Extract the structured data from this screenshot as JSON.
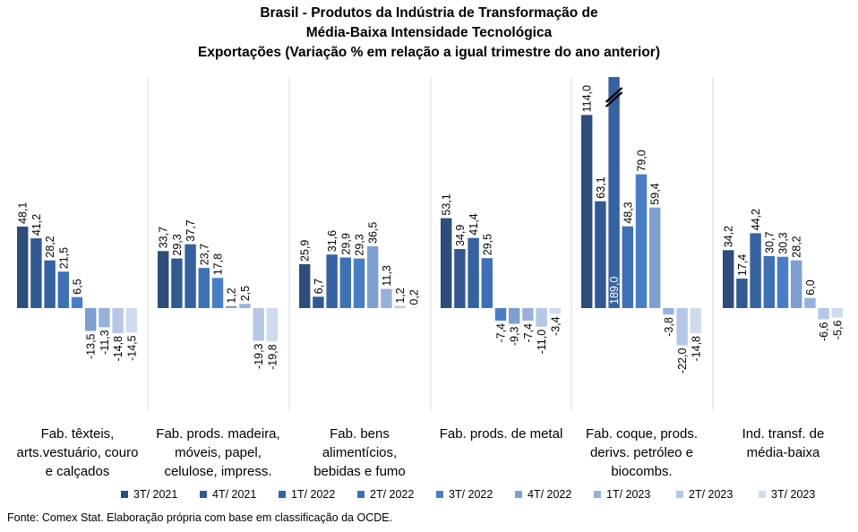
{
  "chart_data": {
    "type": "bar",
    "title": [
      "Brasil - Produtos da Indústria de Transformação de",
      "Média-Baixa Intensidade Tecnológica",
      "Exportações (Variação % em relação a igual trimestre do ano anterior)"
    ],
    "categories": [
      "Fab. têxteis, arts.vestuário, couro e calçados",
      "Fab. prods. madeira, móveis, papel, celulose, impress.",
      "Fab. bens alimentícios, bebidas e fumo",
      "Fab. prods. de metal",
      "Fab. coque, prods. derivs. petróleo e biocombs.",
      "Ind. transf. de média-baixa"
    ],
    "series": [
      {
        "name": "3T/ 2021",
        "color": "#2e4d7b",
        "values": [
          48.1,
          33.7,
          25.9,
          53.1,
          114.0,
          34.2
        ]
      },
      {
        "name": "4T/ 2021",
        "color": "#325a91",
        "values": [
          41.2,
          29.3,
          6.7,
          34.9,
          63.1,
          17.4
        ]
      },
      {
        "name": "1T/ 2022",
        "color": "#3762a0",
        "values": [
          28.2,
          37.7,
          31.6,
          41.4,
          189.0,
          44.2
        ]
      },
      {
        "name": "2T/ 2022",
        "color": "#3f70b4",
        "values": [
          21.5,
          23.7,
          29.9,
          29.5,
          48.3,
          30.7
        ]
      },
      {
        "name": "3T/ 2022",
        "color": "#4a7ec4",
        "values": [
          6.5,
          17.8,
          29.3,
          -7.4,
          79.0,
          30.3
        ]
      },
      {
        "name": "4T/ 2022",
        "color": "#7f9fd0",
        "values": [
          -13.5,
          1.2,
          36.5,
          -9.3,
          59.4,
          28.2
        ]
      },
      {
        "name": "1T/ 2023",
        "color": "#98b1da",
        "values": [
          -11.3,
          2.5,
          11.3,
          -7.4,
          -3.8,
          6.0
        ]
      },
      {
        "name": "2T/ 2023",
        "color": "#b6c7e6",
        "values": [
          -14.8,
          -19.3,
          1.2,
          -11.0,
          -22.0,
          -6.6
        ]
      },
      {
        "name": "3T/ 2023",
        "color": "#cfdbef",
        "values": [
          -14.5,
          -19.8,
          0.2,
          -3.4,
          -14.8,
          -5.6
        ]
      }
    ],
    "value_labels": [
      [
        "48,1",
        "41,2",
        "28,2",
        "21,5",
        "6,5",
        "-13,5",
        "-11,3",
        "-14,8",
        "-14,5"
      ],
      [
        "33,7",
        "29,3",
        "37,7",
        "23,7",
        "17,8",
        "1,2",
        "2,5",
        "-19,3",
        "-19,8"
      ],
      [
        "25,9",
        "6,7",
        "31,6",
        "29,9",
        "29,3",
        "36,5",
        "11,3",
        "1,2",
        "0,2"
      ],
      [
        "53,1",
        "34,9",
        "41,4",
        "29,5",
        "-7,4",
        "-9,3",
        "-7,4",
        "-11,0",
        "-3,4"
      ],
      [
        "114,0",
        "63,1",
        "189,0",
        "48,3",
        "79,0",
        "59,4",
        "-3,8",
        "-22,0",
        "-14,8"
      ],
      [
        "34,2",
        "17,4",
        "44,2",
        "30,7",
        "30,3",
        "28,2",
        "6,0",
        "-6,6",
        "-5,6"
      ]
    ],
    "axis_break": {
      "category_index": 4,
      "series_index": 2
    },
    "ylim": [
      -30,
      120
    ],
    "grid": false,
    "legend_position": "bottom"
  },
  "legend": {
    "items": [
      "3T/ 2021",
      "4T/ 2021",
      "1T/ 2022",
      "2T/ 2022",
      "3T/ 2022",
      "4T/ 2022",
      "1T/ 2023",
      "2T/ 2023",
      "3T/ 2023"
    ]
  },
  "category_labels": [
    [
      "Fab. têxteis,",
      "arts.vestuário, couro",
      "e calçados"
    ],
    [
      "Fab. prods. madeira,",
      "móveis, papel,",
      "celulose, impress."
    ],
    [
      "Fab. bens",
      "alimentícios,",
      "bebidas e fumo"
    ],
    [
      "Fab. prods. de metal"
    ],
    [
      "Fab. coque, prods.",
      "derivs. petróleo e",
      "biocombs."
    ],
    [
      "Ind. transf. de",
      "média-baixa"
    ]
  ],
  "source": "Fonte: Comex Stat. Elaboração própria com base em classificação da OCDE."
}
